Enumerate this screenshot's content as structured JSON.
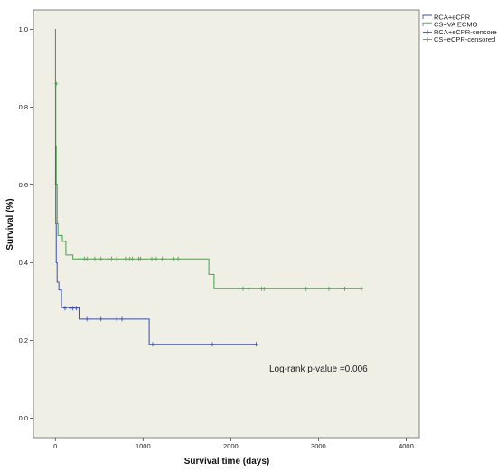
{
  "chart_data": {
    "type": "line",
    "title": "",
    "xlabel": "Survival time (days)",
    "ylabel": "Survival (%)",
    "xlim": [
      -250,
      4150
    ],
    "ylim": [
      -0.05,
      1.05
    ],
    "xticks": [
      0,
      1000,
      2000,
      3000,
      4000
    ],
    "yticks": [
      0.0,
      0.2,
      0.4,
      0.6,
      0.8,
      1.0
    ],
    "ytick_labels": [
      "0.0",
      "0.2",
      "0.4",
      "0.6",
      "0.8",
      "1.0"
    ],
    "grid": false,
    "legend_position": "top-right",
    "legend": [
      "RCA+eCPR",
      "CS+VA ECMO",
      "RCA+eCPR-censored",
      "CS+eCPR-censored"
    ],
    "annotation": "Log-rank p-value =0.006",
    "series": [
      {
        "name": "RCA+eCPR",
        "color": "#3b4fa8",
        "steps": [
          [
            0,
            1.0
          ],
          [
            2,
            0.6
          ],
          [
            5,
            0.5
          ],
          [
            10,
            0.4
          ],
          [
            20,
            0.35
          ],
          [
            40,
            0.33
          ],
          [
            70,
            0.285
          ],
          [
            270,
            0.255
          ],
          [
            1070,
            0.19
          ],
          [
            2290,
            0.19
          ]
        ],
        "censored": [
          [
            110,
            0.283
          ],
          [
            170,
            0.283
          ],
          [
            200,
            0.283
          ],
          [
            240,
            0.283
          ],
          [
            360,
            0.255
          ],
          [
            520,
            0.255
          ],
          [
            700,
            0.255
          ],
          [
            760,
            0.255
          ],
          [
            1110,
            0.19
          ],
          [
            1790,
            0.19
          ],
          [
            2290,
            0.19
          ]
        ]
      },
      {
        "name": "CS+VA ECMO",
        "color": "#4aa04a",
        "steps": [
          [
            0,
            1.0
          ],
          [
            2,
            0.86
          ],
          [
            5,
            0.7
          ],
          [
            10,
            0.6
          ],
          [
            20,
            0.5
          ],
          [
            30,
            0.47
          ],
          [
            80,
            0.455
          ],
          [
            120,
            0.42
          ],
          [
            200,
            0.41
          ],
          [
            1750,
            0.37
          ],
          [
            1810,
            0.333
          ],
          [
            3490,
            0.333
          ]
        ],
        "censored": [
          [
            10,
            0.86
          ],
          [
            280,
            0.41
          ],
          [
            330,
            0.41
          ],
          [
            360,
            0.41
          ],
          [
            450,
            0.41
          ],
          [
            520,
            0.41
          ],
          [
            600,
            0.41
          ],
          [
            640,
            0.41
          ],
          [
            700,
            0.41
          ],
          [
            800,
            0.41
          ],
          [
            850,
            0.41
          ],
          [
            880,
            0.41
          ],
          [
            950,
            0.41
          ],
          [
            970,
            0.41
          ],
          [
            1100,
            0.41
          ],
          [
            1150,
            0.41
          ],
          [
            1220,
            0.41
          ],
          [
            1350,
            0.41
          ],
          [
            1400,
            0.41
          ],
          [
            2140,
            0.333
          ],
          [
            2200,
            0.333
          ],
          [
            2350,
            0.333
          ],
          [
            2380,
            0.333
          ],
          [
            2860,
            0.333
          ],
          [
            3120,
            0.333
          ],
          [
            3300,
            0.333
          ],
          [
            3490,
            0.333
          ]
        ]
      }
    ]
  }
}
